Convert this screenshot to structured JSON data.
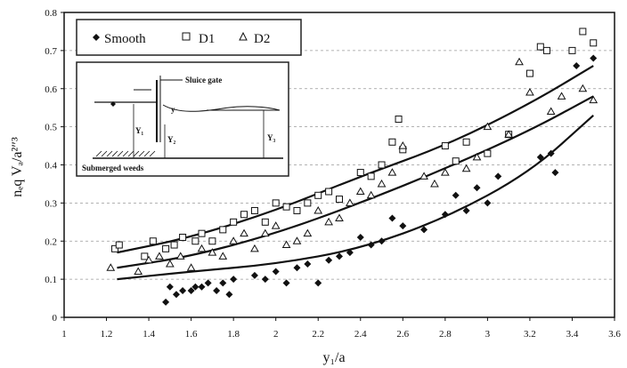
{
  "chart_data": {
    "type": "scatter",
    "xlabel": "y₁/a",
    "ylabel": "nₑq Vₐ/a²″³",
    "xlim": [
      1,
      3.6
    ],
    "ylim": [
      0,
      0.8
    ],
    "x_ticks": [
      "1",
      "1.2",
      "1.4",
      "1.6",
      "1.8",
      "2",
      "2.2",
      "2.4",
      "2.6",
      "2.8",
      "3",
      "3.2",
      "3.4",
      "3.6"
    ],
    "y_ticks": [
      "0",
      "0.1",
      "0.2",
      "0.3",
      "0.4",
      "0.5",
      "0.6",
      "0.7",
      "0.8"
    ],
    "grid": "y-dashed",
    "legend_position": "top-left",
    "series": [
      {
        "name": "Smooth",
        "marker": "diamond",
        "points": [
          [
            1.48,
            0.04
          ],
          [
            1.5,
            0.08
          ],
          [
            1.53,
            0.06
          ],
          [
            1.56,
            0.07
          ],
          [
            1.6,
            0.07
          ],
          [
            1.62,
            0.08
          ],
          [
            1.65,
            0.08
          ],
          [
            1.68,
            0.09
          ],
          [
            1.72,
            0.07
          ],
          [
            1.75,
            0.09
          ],
          [
            1.78,
            0.06
          ],
          [
            1.8,
            0.1
          ],
          [
            1.9,
            0.11
          ],
          [
            1.95,
            0.1
          ],
          [
            2.0,
            0.12
          ],
          [
            2.05,
            0.09
          ],
          [
            2.1,
            0.13
          ],
          [
            2.15,
            0.14
          ],
          [
            2.2,
            0.09
          ],
          [
            2.25,
            0.15
          ],
          [
            2.3,
            0.16
          ],
          [
            2.35,
            0.17
          ],
          [
            2.4,
            0.21
          ],
          [
            2.45,
            0.19
          ],
          [
            2.5,
            0.2
          ],
          [
            2.55,
            0.26
          ],
          [
            2.6,
            0.24
          ],
          [
            2.7,
            0.23
          ],
          [
            2.8,
            0.27
          ],
          [
            2.85,
            0.32
          ],
          [
            2.9,
            0.28
          ],
          [
            2.95,
            0.34
          ],
          [
            3.0,
            0.3
          ],
          [
            3.05,
            0.37
          ],
          [
            3.25,
            0.42
          ],
          [
            3.3,
            0.43
          ],
          [
            3.32,
            0.38
          ],
          [
            3.42,
            0.66
          ],
          [
            3.5,
            0.68
          ]
        ]
      },
      {
        "name": "D1",
        "marker": "square",
        "points": [
          [
            1.24,
            0.18
          ],
          [
            1.26,
            0.19
          ],
          [
            1.38,
            0.16
          ],
          [
            1.42,
            0.2
          ],
          [
            1.48,
            0.18
          ],
          [
            1.52,
            0.19
          ],
          [
            1.56,
            0.21
          ],
          [
            1.62,
            0.2
          ],
          [
            1.65,
            0.22
          ],
          [
            1.7,
            0.2
          ],
          [
            1.75,
            0.23
          ],
          [
            1.8,
            0.25
          ],
          [
            1.85,
            0.27
          ],
          [
            1.9,
            0.28
          ],
          [
            1.95,
            0.25
          ],
          [
            2.0,
            0.3
          ],
          [
            2.05,
            0.29
          ],
          [
            2.1,
            0.28
          ],
          [
            2.15,
            0.3
          ],
          [
            2.2,
            0.32
          ],
          [
            2.25,
            0.33
          ],
          [
            2.3,
            0.31
          ],
          [
            2.4,
            0.38
          ],
          [
            2.45,
            0.37
          ],
          [
            2.5,
            0.4
          ],
          [
            2.55,
            0.46
          ],
          [
            2.58,
            0.52
          ],
          [
            2.6,
            0.44
          ],
          [
            2.8,
            0.45
          ],
          [
            2.85,
            0.41
          ],
          [
            2.9,
            0.46
          ],
          [
            3.0,
            0.43
          ],
          [
            3.1,
            0.48
          ],
          [
            3.2,
            0.64
          ],
          [
            3.25,
            0.71
          ],
          [
            3.28,
            0.7
          ],
          [
            3.4,
            0.7
          ],
          [
            3.45,
            0.75
          ],
          [
            3.5,
            0.72
          ]
        ]
      },
      {
        "name": "D2",
        "marker": "triangle",
        "points": [
          [
            1.22,
            0.13
          ],
          [
            1.35,
            0.12
          ],
          [
            1.4,
            0.15
          ],
          [
            1.45,
            0.16
          ],
          [
            1.5,
            0.14
          ],
          [
            1.55,
            0.16
          ],
          [
            1.6,
            0.13
          ],
          [
            1.65,
            0.18
          ],
          [
            1.7,
            0.17
          ],
          [
            1.75,
            0.16
          ],
          [
            1.8,
            0.2
          ],
          [
            1.85,
            0.22
          ],
          [
            1.9,
            0.18
          ],
          [
            1.95,
            0.22
          ],
          [
            2.0,
            0.24
          ],
          [
            2.05,
            0.19
          ],
          [
            2.1,
            0.2
          ],
          [
            2.15,
            0.22
          ],
          [
            2.2,
            0.28
          ],
          [
            2.25,
            0.25
          ],
          [
            2.3,
            0.26
          ],
          [
            2.35,
            0.3
          ],
          [
            2.4,
            0.33
          ],
          [
            2.45,
            0.32
          ],
          [
            2.5,
            0.35
          ],
          [
            2.55,
            0.38
          ],
          [
            2.6,
            0.45
          ],
          [
            2.7,
            0.37
          ],
          [
            2.75,
            0.35
          ],
          [
            2.8,
            0.38
          ],
          [
            2.9,
            0.39
          ],
          [
            2.95,
            0.42
          ],
          [
            3.0,
            0.5
          ],
          [
            3.1,
            0.48
          ],
          [
            3.15,
            0.67
          ],
          [
            3.2,
            0.59
          ],
          [
            3.3,
            0.54
          ],
          [
            3.35,
            0.58
          ],
          [
            3.45,
            0.6
          ],
          [
            3.5,
            0.57
          ]
        ]
      }
    ],
    "trend_lines": [
      {
        "series": "D1",
        "points": [
          [
            1.25,
            0.17
          ],
          [
            1.6,
            0.21
          ],
          [
            2.0,
            0.28
          ],
          [
            2.4,
            0.37
          ],
          [
            2.8,
            0.45
          ],
          [
            3.2,
            0.56
          ],
          [
            3.5,
            0.66
          ]
        ]
      },
      {
        "series": "D2",
        "points": [
          [
            1.25,
            0.13
          ],
          [
            1.6,
            0.16
          ],
          [
            2.0,
            0.22
          ],
          [
            2.4,
            0.3
          ],
          [
            2.8,
            0.39
          ],
          [
            3.2,
            0.49
          ],
          [
            3.5,
            0.58
          ]
        ]
      },
      {
        "series": "Smooth",
        "points": [
          [
            1.25,
            0.1
          ],
          [
            1.6,
            0.12
          ],
          [
            2.0,
            0.14
          ],
          [
            2.4,
            0.18
          ],
          [
            2.8,
            0.26
          ],
          [
            3.2,
            0.38
          ],
          [
            3.5,
            0.53
          ]
        ]
      }
    ],
    "inset_labels": {
      "sluice_gate": "Sluice gate",
      "weeds": "Submerged weeds",
      "y": "y",
      "y1": "Y₁",
      "y2": "Y₂",
      "y3": "Y₃"
    }
  }
}
